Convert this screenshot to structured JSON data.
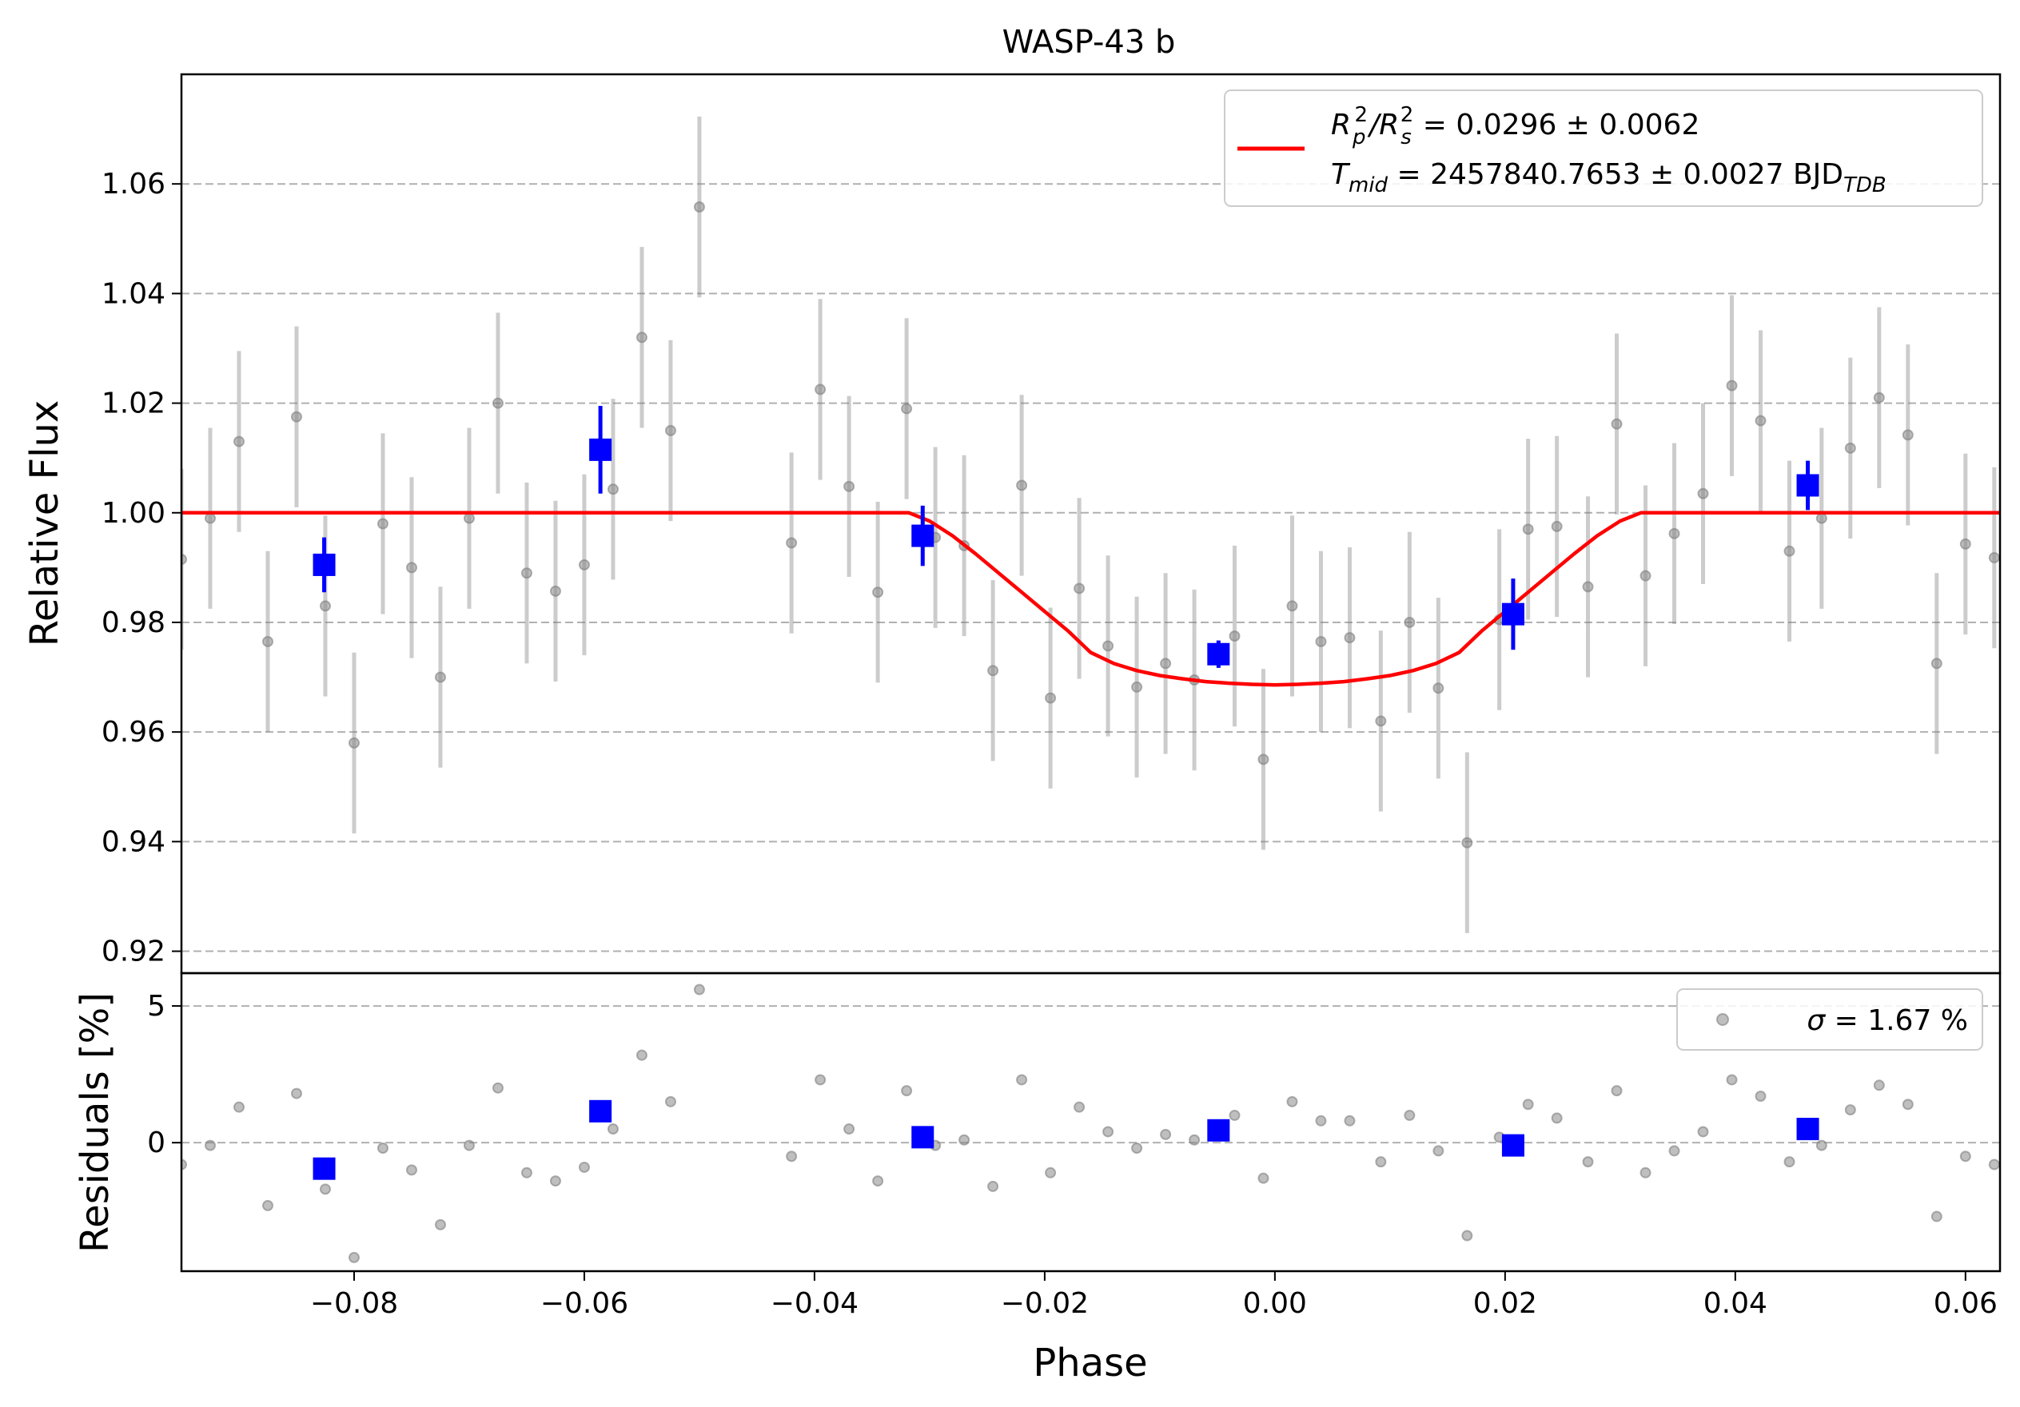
{
  "chart_data": {
    "type": "scatter",
    "title": "WASP-43 b",
    "xlabel": "Phase",
    "xlim": [
      -0.095,
      0.063
    ],
    "x_ticks": [
      -0.08,
      -0.06,
      -0.04,
      -0.02,
      0.0,
      0.02,
      0.04,
      0.06
    ],
    "x_tick_labels": [
      "−0.08",
      "−0.06",
      "−0.04",
      "−0.02",
      "0.00",
      "0.02",
      "0.04",
      "0.06"
    ],
    "grid": "horizontal dashed",
    "colors": {
      "raw": "#808080",
      "binned": "#0000ff",
      "model": "#ff0000",
      "grid": "#b0b0b0"
    },
    "top_panel": {
      "ylabel": "Relative Flux",
      "ylim": [
        0.916,
        1.08
      ],
      "y_ticks": [
        0.92,
        0.94,
        0.96,
        0.98,
        1.0,
        1.02,
        1.04,
        1.06
      ],
      "y_tick_labels": [
        "0.92",
        "0.94",
        "0.96",
        "0.98",
        "1.00",
        "1.02",
        "1.04",
        "1.06"
      ],
      "legend": {
        "placement": "top-right",
        "line1": {
          "main": "R",
          "sub1": "p",
          "sup1": "2",
          "slash": "/R",
          "sub2": "s",
          "sup2": "2",
          "rest": " = 0.0296 ± 0.0062"
        },
        "line2": {
          "main": "T",
          "sub1": "mid",
          "rest": " = 2457840.7653 ± 0.0027 BJD",
          "sub2": "TDB"
        }
      },
      "raw_points": [
        {
          "x": -0.095,
          "y": 0.9915,
          "err": 0.0165
        },
        {
          "x": -0.0925,
          "y": 0.999,
          "err": 0.0165
        },
        {
          "x": -0.09,
          "y": 1.013,
          "err": 0.0165
        },
        {
          "x": -0.0875,
          "y": 0.9765,
          "err": 0.0165
        },
        {
          "x": -0.085,
          "y": 1.0175,
          "err": 0.0165
        },
        {
          "x": -0.0825,
          "y": 0.983,
          "err": 0.0165
        },
        {
          "x": -0.08,
          "y": 0.958,
          "err": 0.0165
        },
        {
          "x": -0.0775,
          "y": 0.998,
          "err": 0.0165
        },
        {
          "x": -0.075,
          "y": 0.99,
          "err": 0.0165
        },
        {
          "x": -0.0725,
          "y": 0.97,
          "err": 0.0165
        },
        {
          "x": -0.07,
          "y": 0.999,
          "err": 0.0165
        },
        {
          "x": -0.0675,
          "y": 1.02,
          "err": 0.0165
        },
        {
          "x": -0.065,
          "y": 0.989,
          "err": 0.0165
        },
        {
          "x": -0.0625,
          "y": 0.9857,
          "err": 0.0165
        },
        {
          "x": -0.06,
          "y": 0.9905,
          "err": 0.0165
        },
        {
          "x": -0.0575,
          "y": 1.0043,
          "err": 0.0165
        },
        {
          "x": -0.055,
          "y": 1.032,
          "err": 0.0165
        },
        {
          "x": -0.0525,
          "y": 1.015,
          "err": 0.0165
        },
        {
          "x": -0.05,
          "y": 1.0558,
          "err": 0.0165
        },
        {
          "x": -0.042,
          "y": 0.9945,
          "err": 0.0165
        },
        {
          "x": -0.0395,
          "y": 1.0225,
          "err": 0.0165
        },
        {
          "x": -0.037,
          "y": 1.0048,
          "err": 0.0165
        },
        {
          "x": -0.0345,
          "y": 0.9855,
          "err": 0.0165
        },
        {
          "x": -0.032,
          "y": 1.019,
          "err": 0.0165
        },
        {
          "x": -0.0295,
          "y": 0.9955,
          "err": 0.0165
        },
        {
          "x": -0.027,
          "y": 0.994,
          "err": 0.0165
        },
        {
          "x": -0.0245,
          "y": 0.9712,
          "err": 0.0165
        },
        {
          "x": -0.022,
          "y": 1.005,
          "err": 0.0165
        },
        {
          "x": -0.0195,
          "y": 0.9662,
          "err": 0.0165
        },
        {
          "x": -0.017,
          "y": 0.9862,
          "err": 0.0165
        },
        {
          "x": -0.0145,
          "y": 0.9757,
          "err": 0.0165
        },
        {
          "x": -0.012,
          "y": 0.9682,
          "err": 0.0165
        },
        {
          "x": -0.0095,
          "y": 0.9725,
          "err": 0.0165
        },
        {
          "x": -0.007,
          "y": 0.9695,
          "err": 0.0165
        },
        {
          "x": -0.0035,
          "y": 0.9775,
          "err": 0.0165
        },
        {
          "x": -0.001,
          "y": 0.955,
          "err": 0.0165
        },
        {
          "x": 0.0015,
          "y": 0.983,
          "err": 0.0165
        },
        {
          "x": 0.004,
          "y": 0.9765,
          "err": 0.0165
        },
        {
          "x": 0.0065,
          "y": 0.9772,
          "err": 0.0165
        },
        {
          "x": 0.0092,
          "y": 0.962,
          "err": 0.0165
        },
        {
          "x": 0.0117,
          "y": 0.98,
          "err": 0.0165
        },
        {
          "x": 0.0142,
          "y": 0.968,
          "err": 0.0165
        },
        {
          "x": 0.0167,
          "y": 0.9398,
          "err": 0.0165
        },
        {
          "x": 0.0195,
          "y": 0.9805,
          "err": 0.0165
        },
        {
          "x": 0.022,
          "y": 0.997,
          "err": 0.0165
        },
        {
          "x": 0.0245,
          "y": 0.9975,
          "err": 0.0165
        },
        {
          "x": 0.0272,
          "y": 0.9865,
          "err": 0.0165
        },
        {
          "x": 0.0297,
          "y": 1.0162,
          "err": 0.0165
        },
        {
          "x": 0.0322,
          "y": 0.9885,
          "err": 0.0165
        },
        {
          "x": 0.0347,
          "y": 0.9962,
          "err": 0.0165
        },
        {
          "x": 0.0372,
          "y": 1.0035,
          "err": 0.0165
        },
        {
          "x": 0.0397,
          "y": 1.0232,
          "err": 0.0165
        },
        {
          "x": 0.0422,
          "y": 1.0168,
          "err": 0.0165
        },
        {
          "x": 0.0447,
          "y": 0.993,
          "err": 0.0165
        },
        {
          "x": 0.0475,
          "y": 0.999,
          "err": 0.0165
        },
        {
          "x": 0.05,
          "y": 1.0118,
          "err": 0.0165
        },
        {
          "x": 0.0525,
          "y": 1.021,
          "err": 0.0165
        },
        {
          "x": 0.055,
          "y": 1.0142,
          "err": 0.0165
        },
        {
          "x": 0.0575,
          "y": 0.9725,
          "err": 0.0165
        },
        {
          "x": 0.06,
          "y": 0.9943,
          "err": 0.0165
        },
        {
          "x": 0.0625,
          "y": 0.9918,
          "err": 0.0165
        }
      ],
      "binned_points": [
        {
          "x": -0.0826,
          "y": 0.9905,
          "err": 0.005
        },
        {
          "x": -0.0586,
          "y": 1.0115,
          "err": 0.008
        },
        {
          "x": -0.0306,
          "y": 0.9958,
          "err": 0.0055
        },
        {
          "x": -0.0049,
          "y": 0.9742,
          "err": 0.0025
        },
        {
          "x": 0.0207,
          "y": 0.9815,
          "err": 0.0065
        },
        {
          "x": 0.0463,
          "y": 1.005,
          "err": 0.0045
        }
      ],
      "model": {
        "name": "",
        "x": [
          -0.095,
          -0.0318,
          -0.03,
          -0.028,
          -0.026,
          -0.024,
          -0.022,
          -0.02,
          -0.018,
          -0.016,
          -0.014,
          -0.012,
          -0.01,
          -0.008,
          -0.006,
          -0.004,
          -0.002,
          0.0,
          0.002,
          0.004,
          0.006,
          0.008,
          0.01,
          0.012,
          0.014,
          0.016,
          0.018,
          0.02,
          0.022,
          0.024,
          0.026,
          0.028,
          0.03,
          0.0318,
          0.063
        ],
        "y": [
          1.0,
          1.0,
          0.9985,
          0.9958,
          0.9925,
          0.989,
          0.9855,
          0.982,
          0.9785,
          0.9745,
          0.9725,
          0.9712,
          0.9703,
          0.9697,
          0.9692,
          0.9689,
          0.9687,
          0.9686,
          0.9687,
          0.9689,
          0.9692,
          0.9697,
          0.9703,
          0.9712,
          0.9725,
          0.9745,
          0.9785,
          0.982,
          0.9855,
          0.989,
          0.9925,
          0.9958,
          0.9985,
          1.0,
          1.0
        ]
      }
    },
    "bottom_panel": {
      "ylabel": "Residuals [%]",
      "ylim": [
        -4.7,
        6.2
      ],
      "y_ticks": [
        0,
        5
      ],
      "y_tick_labels": [
        "0",
        "5"
      ],
      "legend": {
        "placement": "top-right",
        "prefix": "σ",
        "text": " = 1.67 %"
      },
      "raw_points": [
        {
          "x": -0.095,
          "y": -0.8
        },
        {
          "x": -0.0925,
          "y": -0.1
        },
        {
          "x": -0.09,
          "y": 1.3
        },
        {
          "x": -0.0875,
          "y": -2.3
        },
        {
          "x": -0.085,
          "y": 1.8
        },
        {
          "x": -0.0825,
          "y": -1.7
        },
        {
          "x": -0.08,
          "y": -4.2
        },
        {
          "x": -0.0775,
          "y": -0.2
        },
        {
          "x": -0.075,
          "y": -1.0
        },
        {
          "x": -0.0725,
          "y": -3.0
        },
        {
          "x": -0.07,
          "y": -0.1
        },
        {
          "x": -0.0675,
          "y": 2.0
        },
        {
          "x": -0.065,
          "y": -1.1
        },
        {
          "x": -0.0625,
          "y": -1.4
        },
        {
          "x": -0.06,
          "y": -0.9
        },
        {
          "x": -0.0575,
          "y": 0.5
        },
        {
          "x": -0.055,
          "y": 3.2
        },
        {
          "x": -0.0525,
          "y": 1.5
        },
        {
          "x": -0.05,
          "y": 5.6
        },
        {
          "x": -0.042,
          "y": -0.5
        },
        {
          "x": -0.0395,
          "y": 2.3
        },
        {
          "x": -0.037,
          "y": 0.5
        },
        {
          "x": -0.0345,
          "y": -1.4
        },
        {
          "x": -0.032,
          "y": 1.9
        },
        {
          "x": -0.0295,
          "y": -0.1
        },
        {
          "x": -0.027,
          "y": 0.1
        },
        {
          "x": -0.0245,
          "y": -1.6
        },
        {
          "x": -0.022,
          "y": 2.3
        },
        {
          "x": -0.0195,
          "y": -1.1
        },
        {
          "x": -0.017,
          "y": 1.3
        },
        {
          "x": -0.0145,
          "y": 0.4
        },
        {
          "x": -0.012,
          "y": -0.2
        },
        {
          "x": -0.0095,
          "y": 0.3
        },
        {
          "x": -0.007,
          "y": 0.1
        },
        {
          "x": -0.0035,
          "y": 1.0
        },
        {
          "x": -0.001,
          "y": -1.3
        },
        {
          "x": 0.0015,
          "y": 1.5
        },
        {
          "x": 0.004,
          "y": 0.8
        },
        {
          "x": 0.0065,
          "y": 0.8
        },
        {
          "x": 0.0092,
          "y": -0.7
        },
        {
          "x": 0.0117,
          "y": 1.0
        },
        {
          "x": 0.0142,
          "y": -0.3
        },
        {
          "x": 0.0167,
          "y": -3.4
        },
        {
          "x": 0.0195,
          "y": 0.2
        },
        {
          "x": 0.022,
          "y": 1.4
        },
        {
          "x": 0.0245,
          "y": 0.9
        },
        {
          "x": 0.0272,
          "y": -0.7
        },
        {
          "x": 0.0297,
          "y": 1.9
        },
        {
          "x": 0.0322,
          "y": -1.1
        },
        {
          "x": 0.0347,
          "y": -0.3
        },
        {
          "x": 0.0372,
          "y": 0.4
        },
        {
          "x": 0.0397,
          "y": 2.3
        },
        {
          "x": 0.0422,
          "y": 1.7
        },
        {
          "x": 0.0447,
          "y": -0.7
        },
        {
          "x": 0.0475,
          "y": -0.1
        },
        {
          "x": 0.05,
          "y": 1.2
        },
        {
          "x": 0.0525,
          "y": 2.1
        },
        {
          "x": 0.055,
          "y": 1.4
        },
        {
          "x": 0.0575,
          "y": -2.7
        },
        {
          "x": 0.06,
          "y": -0.5
        },
        {
          "x": 0.0625,
          "y": -0.8
        }
      ],
      "binned_points": [
        {
          "x": -0.0826,
          "y": -0.95
        },
        {
          "x": -0.0586,
          "y": 1.15
        },
        {
          "x": -0.0306,
          "y": 0.2
        },
        {
          "x": -0.0049,
          "y": 0.45
        },
        {
          "x": 0.0207,
          "y": -0.1
        },
        {
          "x": 0.0463,
          "y": 0.5
        }
      ]
    }
  }
}
